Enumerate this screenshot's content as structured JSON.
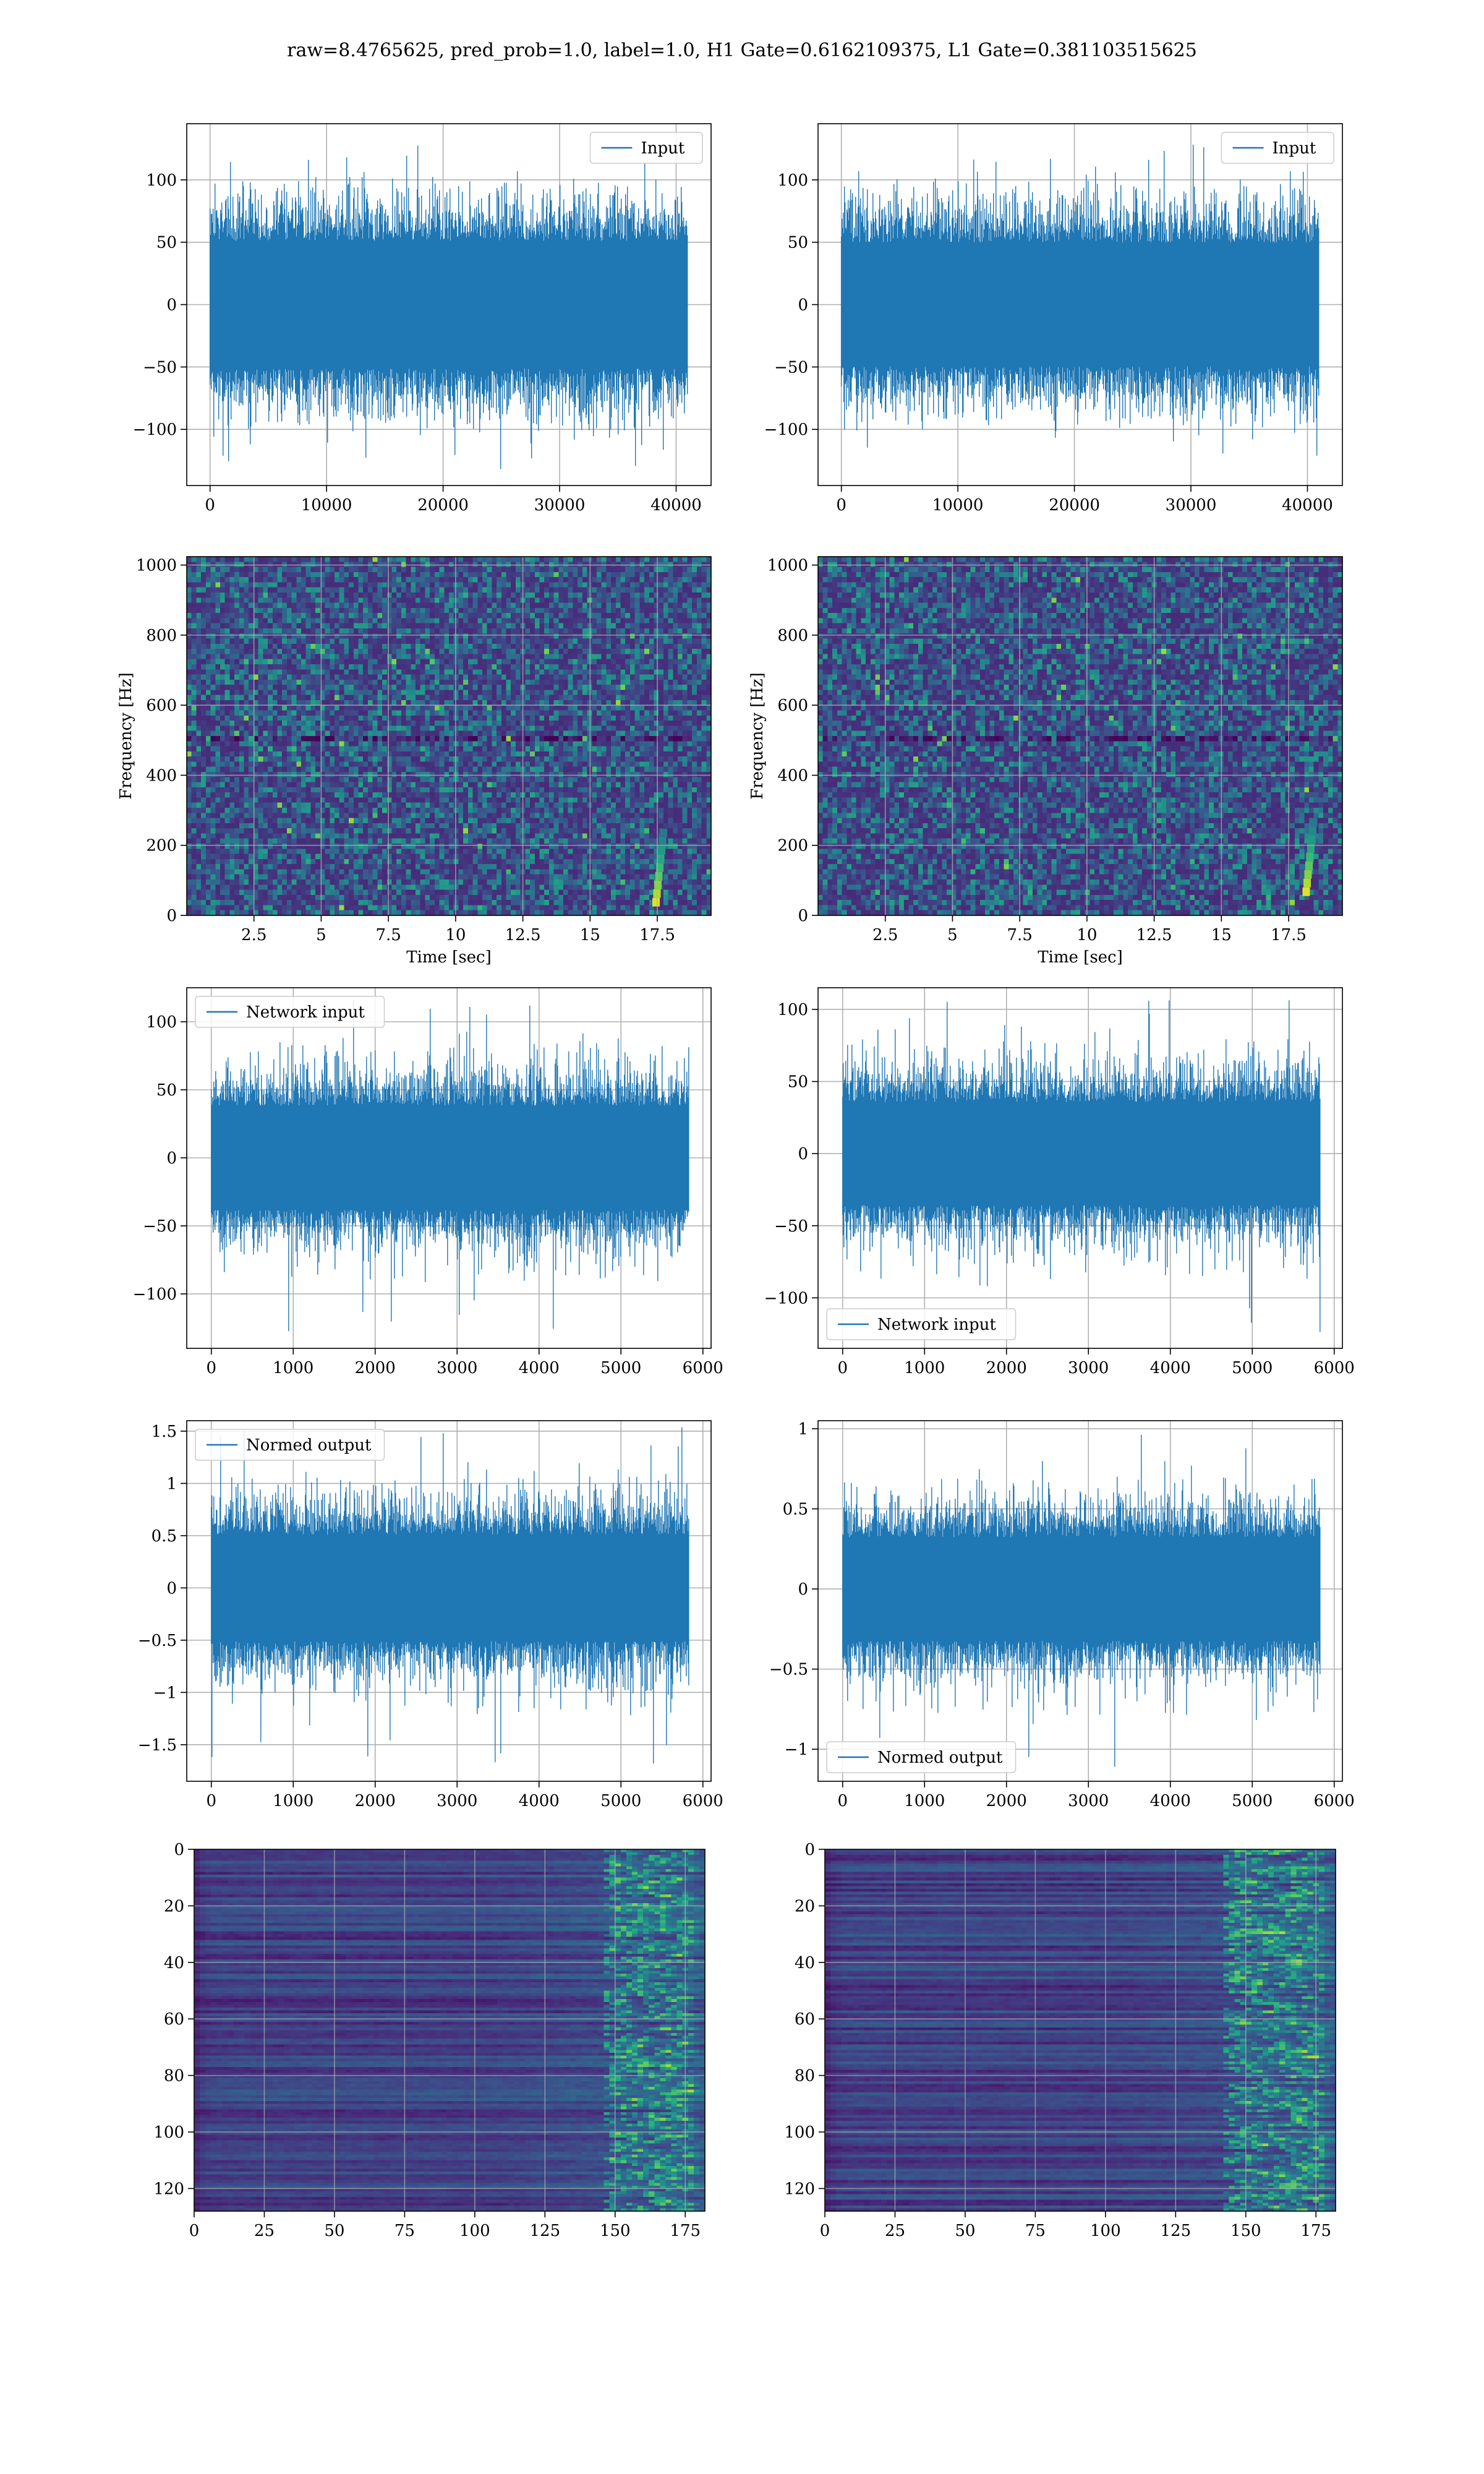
{
  "suptitle": "raw=8.4765625, pred_prob=1.0, label=1.0, H1 Gate=0.6162109375, L1 Gate=0.381103515625",
  "colors": {
    "line": "#1f77b4",
    "grid": "#b0b0b0",
    "viridis": [
      "#440154",
      "#472d7b",
      "#3b528b",
      "#2c728e",
      "#21918c",
      "#28ae80",
      "#5ec962",
      "#addc30",
      "#fde725"
    ]
  },
  "chart_data": [
    {
      "id": "h1-input",
      "type": "line",
      "legend_label": "Input",
      "legend_loc": "upper right",
      "xlim": [
        -2000,
        43000
      ],
      "ylim": [
        -145,
        145
      ],
      "xticks": [
        0,
        10000,
        20000,
        30000,
        40000
      ],
      "yticks": [
        -100,
        -50,
        0,
        50,
        100
      ],
      "xlabel": "",
      "ylabel": "",
      "grid": true,
      "n_points": 40960,
      "envelope": {
        "core": 60,
        "peak_max": 133,
        "peak_min": -133
      }
    },
    {
      "id": "l1-input",
      "type": "line",
      "legend_label": "Input",
      "legend_loc": "upper right",
      "xlim": [
        -2000,
        43000
      ],
      "ylim": [
        -145,
        145
      ],
      "xticks": [
        0,
        10000,
        20000,
        30000,
        40000
      ],
      "yticks": [
        -100,
        -50,
        0,
        50,
        100
      ],
      "xlabel": "",
      "ylabel": "",
      "grid": true,
      "n_points": 40960,
      "envelope": {
        "core": 58,
        "peak_max": 133,
        "peak_min": -127
      }
    },
    {
      "id": "h1-spectrogram",
      "type": "heatmap",
      "xlim": [
        0,
        19.5
      ],
      "ylim": [
        0,
        1024
      ],
      "xticks": [
        2.5,
        5.0,
        7.5,
        10.0,
        12.5,
        15.0,
        17.5
      ],
      "yticks": [
        0,
        200,
        400,
        600,
        800,
        1000
      ],
      "xlabel": "Time [sec]",
      "ylabel": "Frequency [Hz]",
      "grid": true,
      "colormap": "viridis",
      "hot_spot": {
        "time": 17.5,
        "freq": 50
      }
    },
    {
      "id": "l1-spectrogram",
      "type": "heatmap",
      "xlim": [
        0,
        19.5
      ],
      "ylim": [
        0,
        1024
      ],
      "xticks": [
        2.5,
        5.0,
        7.5,
        10.0,
        12.5,
        15.0,
        17.5
      ],
      "yticks": [
        0,
        200,
        400,
        600,
        800,
        1000
      ],
      "xlabel": "Time [sec]",
      "ylabel": "Frequency [Hz]",
      "grid": true,
      "colormap": "viridis",
      "hot_spot": {
        "time": 18.2,
        "freq": 80
      }
    },
    {
      "id": "h1-network-input",
      "type": "line",
      "legend_label": "Network input",
      "legend_loc": "upper left",
      "xlim": [
        -300,
        6100
      ],
      "ylim": [
        -140,
        125
      ],
      "xticks": [
        0,
        1000,
        2000,
        3000,
        4000,
        5000,
        6000
      ],
      "yticks": [
        -100,
        -50,
        0,
        50,
        100
      ],
      "xlabel": "",
      "ylabel": "",
      "grid": true,
      "n_points": 5830,
      "envelope": {
        "core": 45,
        "peak_max": 118,
        "peak_min": -128
      }
    },
    {
      "id": "l1-network-input",
      "type": "line",
      "legend_label": "Network input",
      "legend_loc": "lower left",
      "xlim": [
        -300,
        6100
      ],
      "ylim": [
        -135,
        115
      ],
      "xticks": [
        0,
        1000,
        2000,
        3000,
        4000,
        5000,
        6000
      ],
      "yticks": [
        -100,
        -50,
        0,
        50,
        100
      ],
      "xlabel": "",
      "ylabel": "",
      "grid": true,
      "n_points": 5830,
      "envelope": {
        "core": 42,
        "peak_max": 110,
        "peak_min": -125
      }
    },
    {
      "id": "h1-normed-output",
      "type": "line",
      "legend_label": "Normed output",
      "legend_loc": "upper left",
      "xlim": [
        -300,
        6100
      ],
      "ylim": [
        -1.85,
        1.6
      ],
      "xticks": [
        0,
        1000,
        2000,
        3000,
        4000,
        5000,
        6000
      ],
      "yticks": [
        -1.5,
        -1.0,
        -0.5,
        0.0,
        0.5,
        1.0,
        1.5
      ],
      "xlabel": "",
      "ylabel": "",
      "grid": true,
      "n_points": 5830,
      "envelope": {
        "core": 0.6,
        "peak_max": 1.55,
        "peak_min": -1.7
      }
    },
    {
      "id": "l1-normed-output",
      "type": "line",
      "legend_label": "Normed output",
      "legend_loc": "lower left",
      "xlim": [
        -300,
        6100
      ],
      "ylim": [
        -1.2,
        1.05
      ],
      "xticks": [
        0,
        1000,
        2000,
        3000,
        4000,
        5000,
        6000
      ],
      "yticks": [
        -1.0,
        -0.5,
        0.0,
        0.5,
        1.0
      ],
      "xlabel": "",
      "ylabel": "",
      "grid": true,
      "n_points": 5830,
      "envelope": {
        "core": 0.38,
        "peak_max": 0.97,
        "peak_min": -1.12
      }
    },
    {
      "id": "h1-feature-map",
      "type": "heatmap",
      "xlim": [
        0,
        182
      ],
      "ylim": [
        128,
        0
      ],
      "xticks": [
        0,
        25,
        50,
        75,
        100,
        125,
        150,
        175
      ],
      "yticks": [
        0,
        20,
        40,
        60,
        80,
        100,
        120
      ],
      "xlabel": "",
      "ylabel": "",
      "grid": true,
      "colormap": "viridis",
      "rows": 128,
      "cols": 182,
      "hot_columns": [
        145,
        178
      ]
    },
    {
      "id": "l1-feature-map",
      "type": "heatmap",
      "xlim": [
        0,
        182
      ],
      "ylim": [
        128,
        0
      ],
      "xticks": [
        0,
        25,
        50,
        75,
        100,
        125,
        150,
        175
      ],
      "yticks": [
        0,
        20,
        40,
        60,
        80,
        100,
        120
      ],
      "xlabel": "",
      "ylabel": "",
      "grid": true,
      "colormap": "viridis",
      "rows": 128,
      "cols": 182,
      "hot_columns": [
        140,
        178
      ]
    }
  ]
}
